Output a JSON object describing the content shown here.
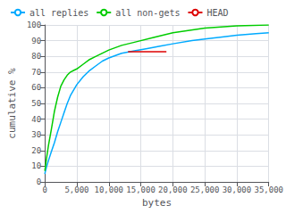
{
  "chart_data": {
    "type": "line",
    "xlabel": "bytes",
    "ylabel": "cumulative %",
    "xlim": [
      0,
      35000
    ],
    "ylim": [
      0,
      100
    ],
    "xticks": [
      0,
      5000,
      10000,
      15000,
      20000,
      25000,
      30000,
      35000
    ],
    "yticks": [
      0,
      10,
      20,
      30,
      40,
      50,
      60,
      70,
      80,
      90,
      100
    ],
    "grid": true,
    "legend": "upper left",
    "series": [
      {
        "name": "all replies",
        "color": "#00aaff",
        "x": [
          0,
          100,
          300,
          600,
          1000,
          1500,
          2000,
          2500,
          3000,
          3500,
          4000,
          5000,
          6000,
          7000,
          8000,
          9000,
          10000,
          12000,
          14000,
          16000,
          18000,
          20000,
          23000,
          25000,
          28000,
          30000,
          33000,
          35000
        ],
        "values": [
          5,
          7,
          10,
          14,
          19,
          25,
          32,
          38,
          44,
          50,
          55,
          62,
          67,
          71,
          74,
          77,
          79,
          82,
          83.5,
          85,
          86.5,
          88,
          90,
          91,
          92.5,
          93.5,
          94.5,
          95
        ]
      },
      {
        "name": "all non-gets",
        "color": "#00cc00",
        "x": [
          0,
          100,
          300,
          600,
          1000,
          1500,
          2000,
          2500,
          3000,
          3500,
          4000,
          4500,
          5000,
          6000,
          7000,
          8000,
          9000,
          10000,
          12000,
          14000,
          17000,
          20000,
          25000,
          30000,
          35000
        ],
        "values": [
          7,
          10,
          16,
          24,
          33,
          45,
          54,
          61,
          65,
          68,
          70,
          71,
          72,
          75,
          78,
          80,
          82,
          84,
          87,
          89,
          92,
          95,
          98,
          99.5,
          100
        ]
      },
      {
        "name": "HEAD",
        "color": "#dd0000",
        "x": [
          13000,
          19000
        ],
        "values": [
          83,
          83
        ]
      }
    ]
  }
}
